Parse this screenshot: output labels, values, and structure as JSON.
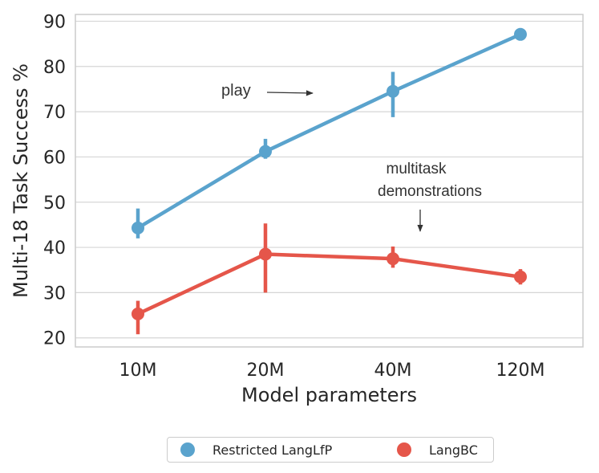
{
  "chart_data": {
    "type": "line",
    "categories": [
      "10M",
      "20M",
      "40M",
      "120M"
    ],
    "series": [
      {
        "name": "Restricted LangLfP",
        "color": "#5aa3cd",
        "values": [
          44.3,
          61.2,
          74.5,
          87.1
        ],
        "err_low": [
          42.0,
          59.6,
          68.8,
          85.8
        ],
        "err_high": [
          48.6,
          64.0,
          78.8,
          87.6
        ]
      },
      {
        "name": "LangBC",
        "color": "#e5564a",
        "values": [
          25.3,
          38.5,
          37.5,
          33.5
        ],
        "err_low": [
          20.8,
          30.0,
          35.5,
          31.8
        ],
        "err_high": [
          28.2,
          45.3,
          40.2,
          35.2
        ]
      }
    ],
    "xlabel": "Model parameters",
    "ylabel": "Multi-18 Task Success %",
    "ylim": [
      18,
      91.5
    ],
    "yticks": [
      20,
      30,
      40,
      50,
      60,
      70,
      80,
      90
    ],
    "grid": true,
    "legend_position": "bottom-center",
    "annotations": [
      {
        "text": "play",
        "arrow": "right"
      },
      {
        "text": "multitask\ndemonstrations",
        "arrow": "down"
      }
    ]
  }
}
